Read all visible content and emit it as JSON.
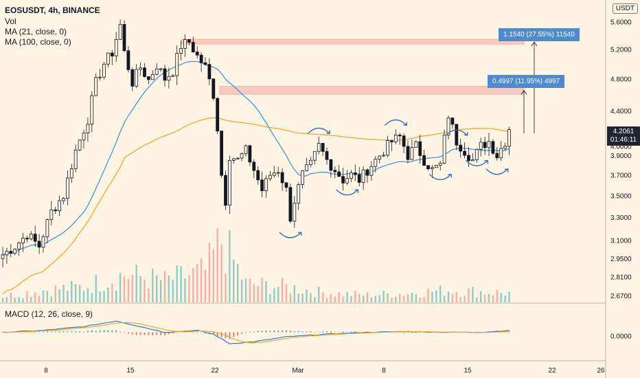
{
  "header": {
    "symbol": "EOSUSDT, 4h, BINANCE",
    "vol": "Vol",
    "ma1": "MA (21, close, 0)",
    "ma2": "MA (100, close, 0)",
    "macd": "MACD (12, 26, close, 9)",
    "currency": "USDT"
  },
  "price_axis": [
    "5.6000",
    "5.2000",
    "4.8000",
    "4.4000",
    "4.0000",
    "3.9000",
    "3.7000",
    "3.5000",
    "3.3000",
    "3.1000",
    "2.9500",
    "2.8100",
    "2.6700"
  ],
  "macd_axis": [
    "0.0000"
  ],
  "time_axis": [
    "8",
    "15",
    "22",
    "Mar",
    "8",
    "15",
    "22",
    "26"
  ],
  "last_price": {
    "value": "4.2061",
    "countdown": "01:46:11"
  },
  "targets": [
    {
      "label": "1.1540 (27.55%) 11540",
      "price": 5.3
    },
    {
      "label": "0.4997 (11.95%) 4997",
      "price": 4.65
    }
  ],
  "colors": {
    "background": "#fdf4e3",
    "up": "#131722",
    "down": "#131722",
    "ma21": "#3a9bd9",
    "ma100": "#f5a623",
    "macd": "#2a7ad6",
    "signal": "#f5a623",
    "zone": "#f4a6a0",
    "vol_up": "#7ac7bc",
    "vol_down": "#f2a39e",
    "tag": "#4a8bd1"
  },
  "chart_data": {
    "type": "candlestick",
    "title": "EOSUSDT, 4h, BINANCE",
    "ylim": [
      2.62,
      5.85
    ],
    "y_scale": "log",
    "price_path": [
      [
        0,
        2.98
      ],
      [
        3,
        3.05
      ],
      [
        6,
        3.15
      ],
      [
        9,
        3.05
      ],
      [
        12,
        3.35
      ],
      [
        15,
        3.5
      ],
      [
        18,
        3.95
      ],
      [
        21,
        4.3
      ],
      [
        23,
        4.75
      ],
      [
        25,
        5.0
      ],
      [
        27,
        5.15
      ],
      [
        29,
        5.55
      ],
      [
        30,
        5.15
      ],
      [
        32,
        4.75
      ],
      [
        34,
        4.95
      ],
      [
        36,
        4.78
      ],
      [
        38,
        4.98
      ],
      [
        40,
        4.8
      ],
      [
        42,
        4.9
      ],
      [
        44,
        5.25
      ],
      [
        46,
        5.3
      ],
      [
        48,
        5.1
      ],
      [
        50,
        4.95
      ],
      [
        52,
        4.6
      ],
      [
        53,
        4.2
      ],
      [
        54,
        3.7
      ],
      [
        55,
        3.45
      ],
      [
        56,
        3.9
      ],
      [
        58,
        3.85
      ],
      [
        60,
        3.95
      ],
      [
        62,
        3.75
      ],
      [
        64,
        3.55
      ],
      [
        66,
        3.7
      ],
      [
        68,
        3.75
      ],
      [
        70,
        3.55
      ],
      [
        71,
        3.3
      ],
      [
        72,
        3.45
      ],
      [
        74,
        3.7
      ],
      [
        76,
        3.8
      ],
      [
        78,
        4.0
      ],
      [
        80,
        3.85
      ],
      [
        82,
        3.75
      ],
      [
        84,
        3.65
      ],
      [
        86,
        3.7
      ],
      [
        88,
        3.65
      ],
      [
        90,
        3.75
      ],
      [
        92,
        3.85
      ],
      [
        94,
        3.95
      ],
      [
        96,
        4.05
      ],
      [
        98,
        4.1
      ],
      [
        100,
        3.9
      ],
      [
        102,
        4.0
      ],
      [
        104,
        3.85
      ],
      [
        106,
        3.75
      ],
      [
        108,
        3.8
      ],
      [
        110,
        4.35
      ],
      [
        112,
        4.05
      ],
      [
        114,
        3.95
      ],
      [
        116,
        3.85
      ],
      [
        118,
        4.0
      ],
      [
        120,
        4.05
      ],
      [
        122,
        3.9
      ],
      [
        124,
        4.05
      ],
      [
        125,
        4.2
      ]
    ],
    "volume_path": [
      [
        0,
        0.1
      ],
      [
        10,
        0.2
      ],
      [
        20,
        0.25
      ],
      [
        30,
        0.45
      ],
      [
        40,
        0.35
      ],
      [
        50,
        0.5
      ],
      [
        54,
        1.0
      ],
      [
        60,
        0.3
      ],
      [
        70,
        0.25
      ],
      [
        80,
        0.15
      ],
      [
        90,
        0.12
      ],
      [
        100,
        0.15
      ],
      [
        110,
        0.2
      ],
      [
        125,
        0.15
      ]
    ],
    "macd_path": [
      [
        0,
        0.0
      ],
      [
        10,
        0.05
      ],
      [
        20,
        0.15
      ],
      [
        28,
        0.3
      ],
      [
        32,
        0.2
      ],
      [
        40,
        0.0
      ],
      [
        48,
        0.05
      ],
      [
        52,
        -0.05
      ],
      [
        56,
        -0.3
      ],
      [
        62,
        -0.25
      ],
      [
        70,
        -0.12
      ],
      [
        80,
        -0.05
      ],
      [
        90,
        0.0
      ],
      [
        100,
        0.02
      ],
      [
        110,
        0.0
      ],
      [
        118,
        0.0
      ],
      [
        125,
        0.05
      ]
    ],
    "zones": [
      {
        "from": 5.27,
        "to": 5.34
      },
      {
        "from": 4.6,
        "to": 4.7
      }
    ],
    "arcs": [
      {
        "i": 71,
        "dir": "down"
      },
      {
        "i": 78,
        "dir": "up"
      },
      {
        "i": 85,
        "dir": "down"
      },
      {
        "i": 97,
        "dir": "up"
      },
      {
        "i": 108,
        "dir": "down"
      },
      {
        "i": 112,
        "dir": "up"
      },
      {
        "i": 117,
        "dir": "down"
      },
      {
        "i": 122,
        "dir": "down"
      }
    ]
  }
}
